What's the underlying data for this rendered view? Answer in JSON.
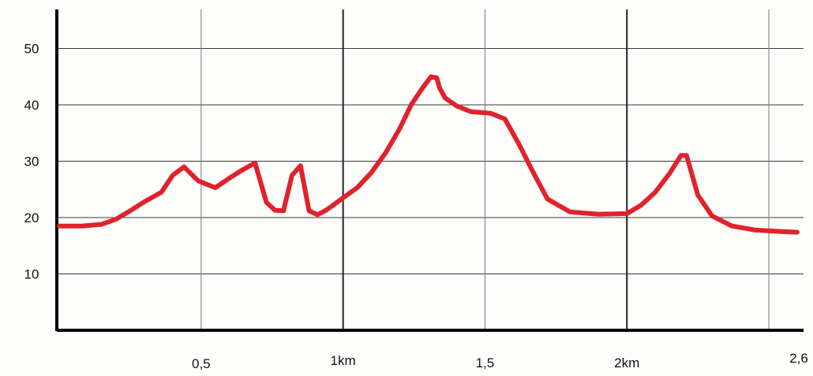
{
  "chart_data": {
    "type": "line",
    "title": "",
    "xlabel": "",
    "ylabel": "",
    "xlim": [
      0,
      2.6
    ],
    "ylim": [
      0,
      55
    ],
    "grid": true,
    "legend": "none",
    "x_ticks": [
      {
        "value": 0.5,
        "label": "0,5"
      },
      {
        "value": 1.0,
        "label": "1km"
      },
      {
        "value": 1.5,
        "label": "1,5"
      },
      {
        "value": 2.0,
        "label": "2km"
      },
      {
        "value": 2.6,
        "label": "2,6"
      }
    ],
    "y_ticks": [
      {
        "value": 10,
        "label": "10"
      },
      {
        "value": 20,
        "label": "20"
      },
      {
        "value": 30,
        "label": "30"
      },
      {
        "value": 40,
        "label": "40"
      },
      {
        "value": 50,
        "label": "50"
      }
    ],
    "series": [
      {
        "color": "#e0232b",
        "x": [
          0.0,
          0.08,
          0.15,
          0.2,
          0.25,
          0.3,
          0.36,
          0.4,
          0.44,
          0.49,
          0.55,
          0.6,
          0.64,
          0.69,
          0.73,
          0.76,
          0.79,
          0.82,
          0.85,
          0.88,
          0.91,
          0.94,
          0.96,
          1.0,
          1.05,
          1.1,
          1.15,
          1.2,
          1.24,
          1.28,
          1.31,
          1.33,
          1.34,
          1.36,
          1.4,
          1.45,
          1.52,
          1.57,
          1.62,
          1.67,
          1.72,
          1.8,
          1.9,
          2.0,
          2.05,
          2.1,
          2.15,
          2.19,
          2.21,
          2.25,
          2.3,
          2.37,
          2.45,
          2.55,
          2.6
        ],
        "values": [
          18.5,
          18.5,
          18.8,
          19.7,
          21.2,
          22.8,
          24.5,
          27.5,
          29.0,
          26.5,
          25.3,
          27.0,
          28.3,
          29.7,
          22.7,
          21.3,
          21.2,
          27.5,
          29.2,
          21.2,
          20.5,
          21.3,
          22.0,
          23.5,
          25.3,
          28.0,
          31.5,
          35.8,
          40.0,
          43.0,
          45.0,
          44.8,
          43.0,
          41.2,
          39.8,
          38.8,
          38.5,
          37.5,
          33.0,
          28.0,
          23.3,
          21.0,
          20.6,
          20.7,
          22.2,
          24.5,
          27.8,
          31.0,
          31.0,
          24.0,
          20.3,
          18.5,
          17.8,
          17.5,
          17.4
        ]
      }
    ]
  }
}
